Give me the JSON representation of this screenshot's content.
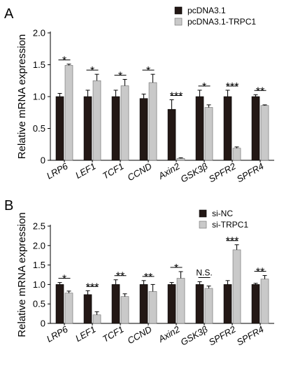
{
  "chart_data": [
    {
      "type": "bar",
      "panel_label": "A",
      "ylabel": "Relative mRNA expression",
      "ylim": [
        0,
        2.0
      ],
      "yticks": [
        "0",
        "0.5",
        "1.0",
        "1.5",
        "2.0"
      ],
      "categories": [
        "LRP6",
        "LEF1",
        "TCF1",
        "CCND",
        "Axin2",
        "GSK3β",
        "SPFR2",
        "SPFR4"
      ],
      "series": [
        {
          "name": "pcDNA3.1",
          "color": "#231815",
          "values": [
            1.0,
            1.0,
            1.0,
            0.97,
            0.8,
            1.0,
            1.0,
            1.0
          ],
          "errors": [
            0.05,
            0.1,
            0.1,
            0.07,
            0.15,
            0.1,
            0.1,
            0.03
          ]
        },
        {
          "name": "pcDNA3.1-TRPC1",
          "color": "#c9c9c9",
          "values": [
            1.49,
            1.25,
            1.17,
            1.22,
            0.03,
            0.83,
            0.19,
            0.86
          ],
          "errors": [
            0.02,
            0.1,
            0.1,
            0.13,
            0.01,
            0.04,
            0.02,
            0.01
          ]
        }
      ],
      "significance": [
        "*",
        "*",
        "*",
        "*",
        "***",
        "*",
        "***",
        "**"
      ],
      "legend_position": "top-right"
    },
    {
      "type": "bar",
      "panel_label": "B",
      "ylabel": "Relative mRNA expression",
      "ylim": [
        0,
        2.5
      ],
      "yticks": [
        "0",
        "0.5",
        "1.0",
        "1.5",
        "2.0",
        "2.5"
      ],
      "categories": [
        "LRP6",
        "LEF1",
        "TCF1",
        "CCND",
        "Axin2",
        "GSK3β",
        "SPFR2",
        "SPFR4"
      ],
      "series": [
        {
          "name": "si-NC",
          "color": "#231815",
          "values": [
            1.0,
            0.74,
            1.0,
            1.0,
            1.0,
            1.0,
            1.0,
            1.0
          ],
          "errors": [
            0.05,
            0.1,
            0.12,
            0.1,
            0.05,
            0.07,
            0.1,
            0.03
          ]
        },
        {
          "name": "si-TRPC1",
          "color": "#c9c9c9",
          "values": [
            0.78,
            0.22,
            0.69,
            0.82,
            1.16,
            0.9,
            1.89,
            1.14
          ],
          "errors": [
            0.05,
            0.08,
            0.07,
            0.18,
            0.17,
            0.06,
            0.13,
            0.09
          ]
        }
      ],
      "significance": [
        "*",
        "***",
        "**",
        "**",
        "*",
        "N.S.",
        "***",
        "**"
      ],
      "legend_position": "top-right"
    }
  ]
}
